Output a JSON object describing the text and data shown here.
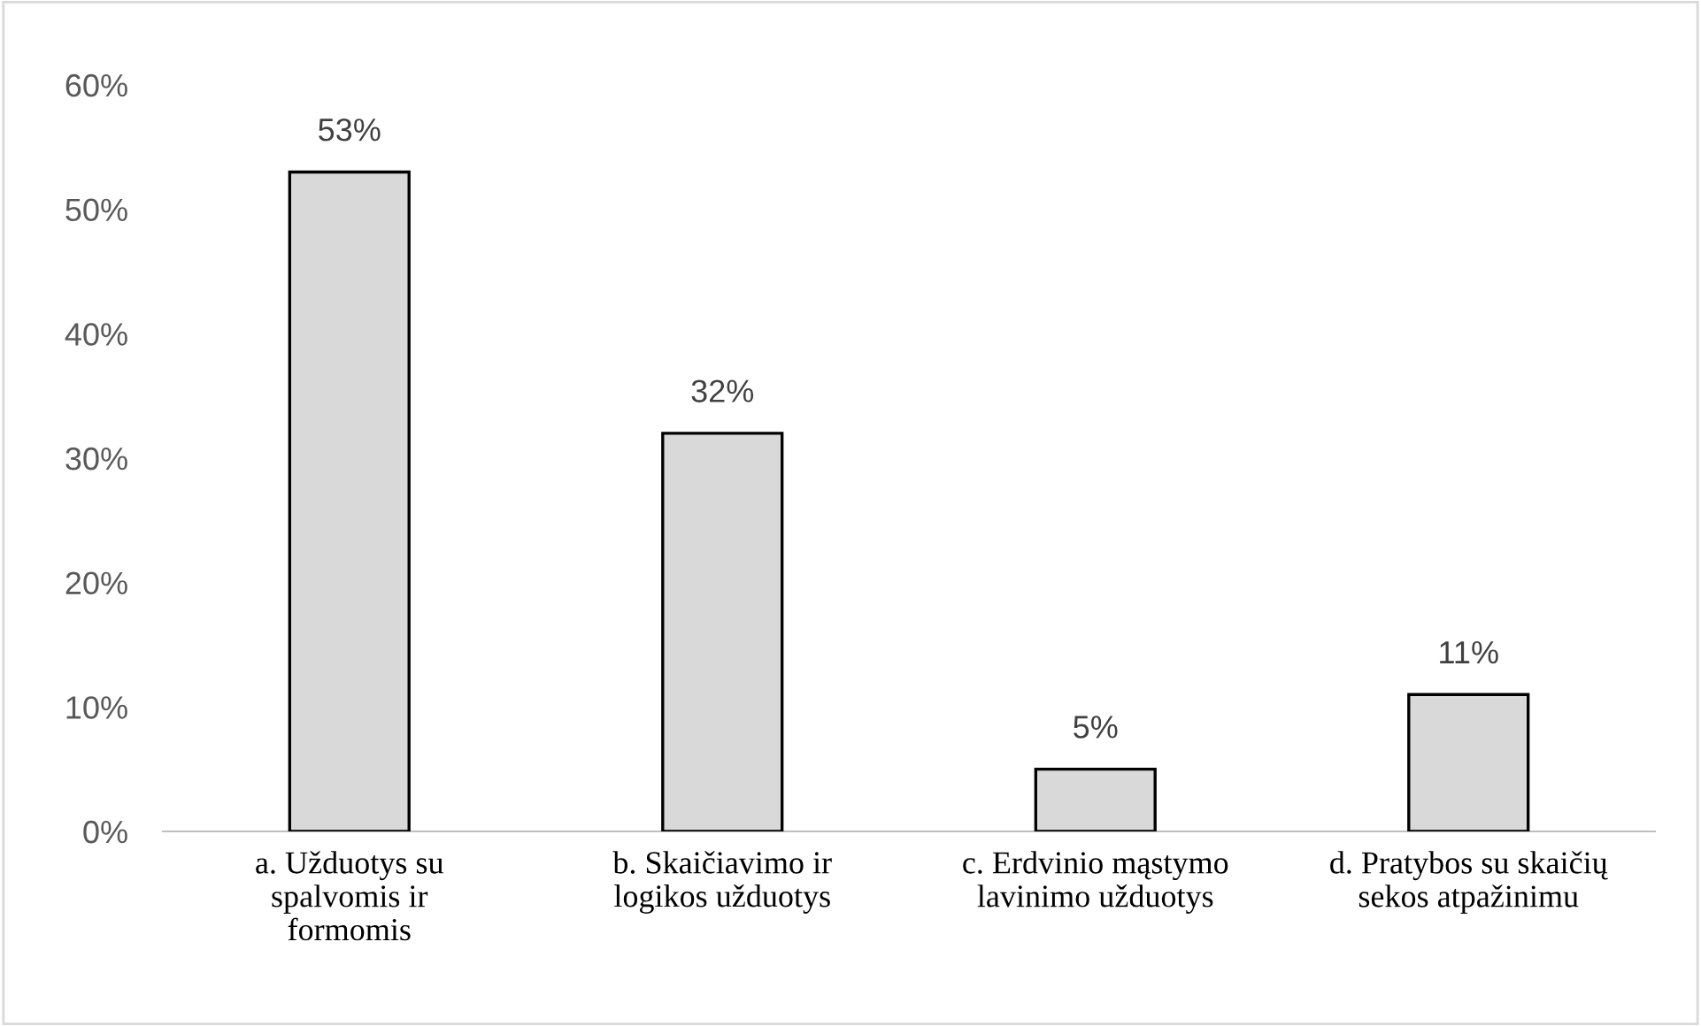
{
  "chart_data": {
    "type": "bar",
    "categories": [
      "a. Užduotys su\nspalvomis ir\nformomis",
      "b. Skaičiavimo ir\nlogikos užduotys",
      "c. Erdvinio mąstymo\nlavinimo užduotys",
      "d. Pratybos su skaičių\nsekos atpažinimu"
    ],
    "values": [
      53,
      32,
      5,
      11
    ],
    "color": "#d9d9d9",
    "ylim": [
      0,
      60
    ],
    "yticks": [
      {
        "value": 0,
        "label": "0%"
      },
      {
        "value": 10,
        "label": "10%"
      },
      {
        "value": 20,
        "label": "20%"
      },
      {
        "value": 30,
        "label": "30%"
      },
      {
        "value": 40,
        "label": "40%"
      },
      {
        "value": 50,
        "label": "50%"
      },
      {
        "value": 60,
        "label": "60%"
      }
    ],
    "value_labels": [
      "53%",
      "32%",
      "5%",
      "11%"
    ],
    "grid": false,
    "legend": false
  }
}
